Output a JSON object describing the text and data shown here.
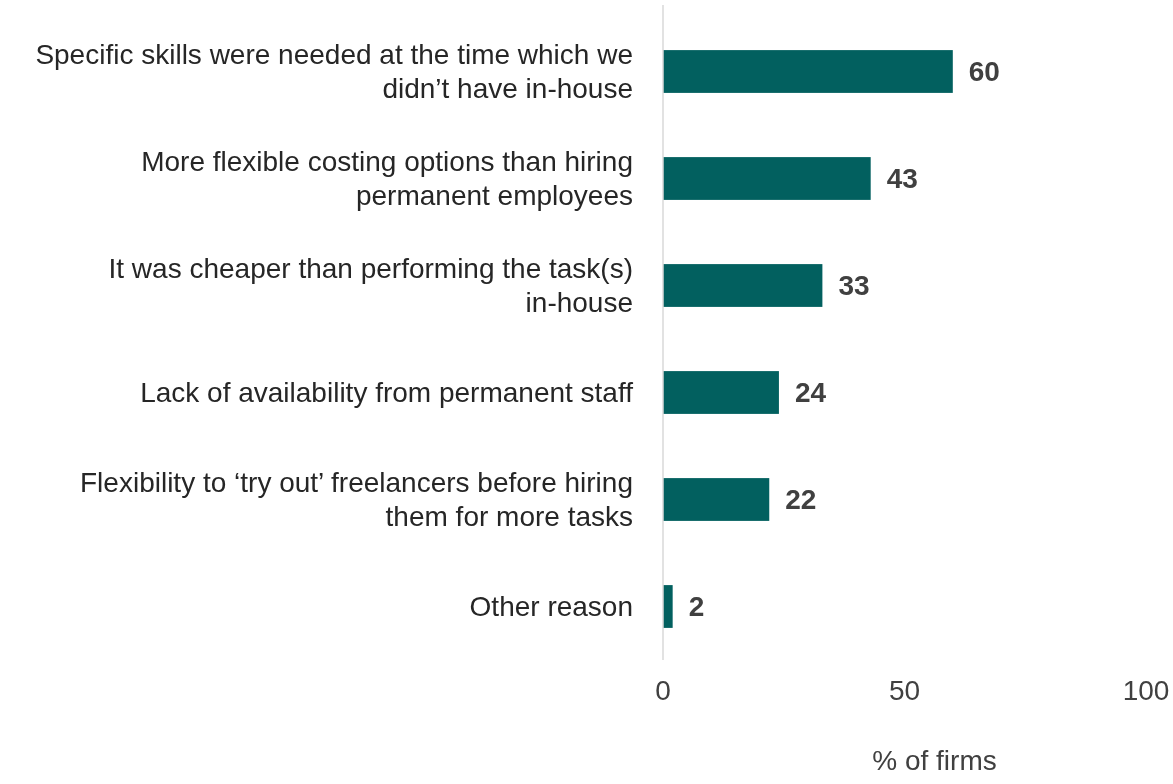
{
  "chart_data": {
    "type": "bar",
    "orientation": "horizontal",
    "xlabel": "% of firms",
    "categories": [
      "Specific skills were needed at the time which we didn’t have in-house",
      "More flexible costing options than hiring permanent employees",
      "It was cheaper than performing the task(s) in-house",
      "Lack of availability from permanent staff",
      "Flexibility to ‘try out’ freelancers before hiring them for more tasks",
      "Other reason"
    ],
    "values": [
      60,
      43,
      33,
      24,
      22,
      2
    ],
    "color": "#02605f",
    "data_labels": true,
    "xlim": [
      0,
      100
    ],
    "xticks": [
      0,
      50,
      100
    ],
    "grid": false
  }
}
